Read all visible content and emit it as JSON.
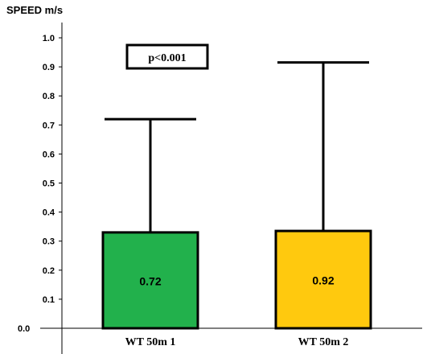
{
  "chart_data": {
    "type": "bar",
    "ylabel": "SPEED m/s",
    "ylim": [
      0,
      1.0
    ],
    "yticks": [
      "0.0",
      "0.1",
      "0.2",
      "0.3",
      "0.4",
      "0.5",
      "0.6",
      "0.7",
      "0.8",
      "0.9",
      "1.0"
    ],
    "categories": [
      "WT 50m 1",
      "WT 50m 2"
    ],
    "values": [
      0.33,
      0.335
    ],
    "error_upper": [
      0.72,
      0.915
    ],
    "data_labels": [
      "0.72",
      "0.92"
    ],
    "bar_colors": [
      "#22b14c",
      "#ffc90e"
    ],
    "annotation": "p<0.001",
    "grid": false,
    "legend": "none"
  }
}
